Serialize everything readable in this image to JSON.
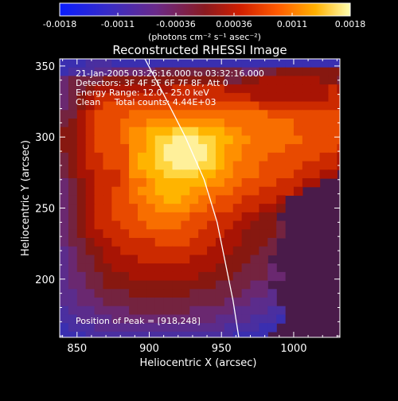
{
  "chart_data": {
    "type": "heatmap",
    "title": "Reconstructed RHESSI Image",
    "xlabel": "Heliocentric X (arcsec)",
    "ylabel": "Heliocentric Y (arcsec)",
    "xlim": [
      838,
      1032
    ],
    "ylim": [
      159,
      355
    ],
    "x_ticks": [
      850,
      900,
      950,
      1000
    ],
    "y_ticks": [
      200,
      250,
      300,
      350
    ],
    "colorbar": {
      "ticks": [
        "-0.0018",
        "-0.0011",
        "-0.00036",
        "0.00036",
        "0.0011",
        "0.0018"
      ],
      "range": [
        -0.0018,
        0.0018
      ],
      "units_label": "(photons cm⁻² s⁻¹ asec⁻²)"
    },
    "annotations": {
      "time": "21-Jan-2005 03:26:16.000 to 03:32:16.000",
      "detectors": "Detectors: 3F 4F 5F 6F 7F 8F, Att 0",
      "energy": "Energy Range: 12.0 - 25.0 keV",
      "clean": "Clean     Total counts: 4.44E+03",
      "peak": "Position of Peak = [918,248]"
    },
    "peak": [
      918,
      248
    ],
    "limb_curve": [
      [
        897,
        355
      ],
      [
        910,
        330
      ],
      [
        925,
        300
      ],
      [
        938,
        270
      ],
      [
        947,
        240
      ],
      [
        953,
        210
      ],
      [
        958,
        185
      ],
      [
        962,
        159
      ]
    ],
    "intensity_grid": {
      "x_start": 838,
      "y_start": 355,
      "cell": 6,
      "rows": [
        "000111000000000000000000000000000000",
        "011122333334444444444334455555555544",
        "344445555555555555544556666666554444",
        "344566666666677777766666666666676655",
        "345677777777777777777766666666677766",
        "345678888888888888888887777777777777",
        "446788889999999999999999888888888877",
        "4567888999AAAAAAAAA9999999988888887",
        "55678889AABBBCCCBBBAA99999988888877",
        "55678889AABCCDDDCCBBAA9999998888877",
        "55678888AABCDDDDDCBAA99999888888776",
        "45677888ABBCDDDDDCBAA9998888887766",
        "45677888ABBCCDDDCCBA9998888877776",
        "45667778AABBCCCCBBAA999888877766",
        "3456777899ABBBBBBAA99888877766",
        "345677889AABBBBAA99988877776",
        "3456778899AABBAA9988877776",
        "34567788899AAAA99888777665",
        "3456778889999998887776655",
        "34567778889999888777665554",
        "34566777888888887776655554",
        "3445667777788887776665554",
        "2345566777777777766655544",
        "234456666777777666655544",
        "2344556666666666665554443",
        "23344555666666665555444433",
        "233445555555555555444433",
        "2233444455555554444443332",
        "2233344444444444444333222",
        "12223333444444433333222211",
        "11222233333333333322221110",
        "0111222222222222222111100",
        "000111111111111111110000"
      ]
    }
  }
}
